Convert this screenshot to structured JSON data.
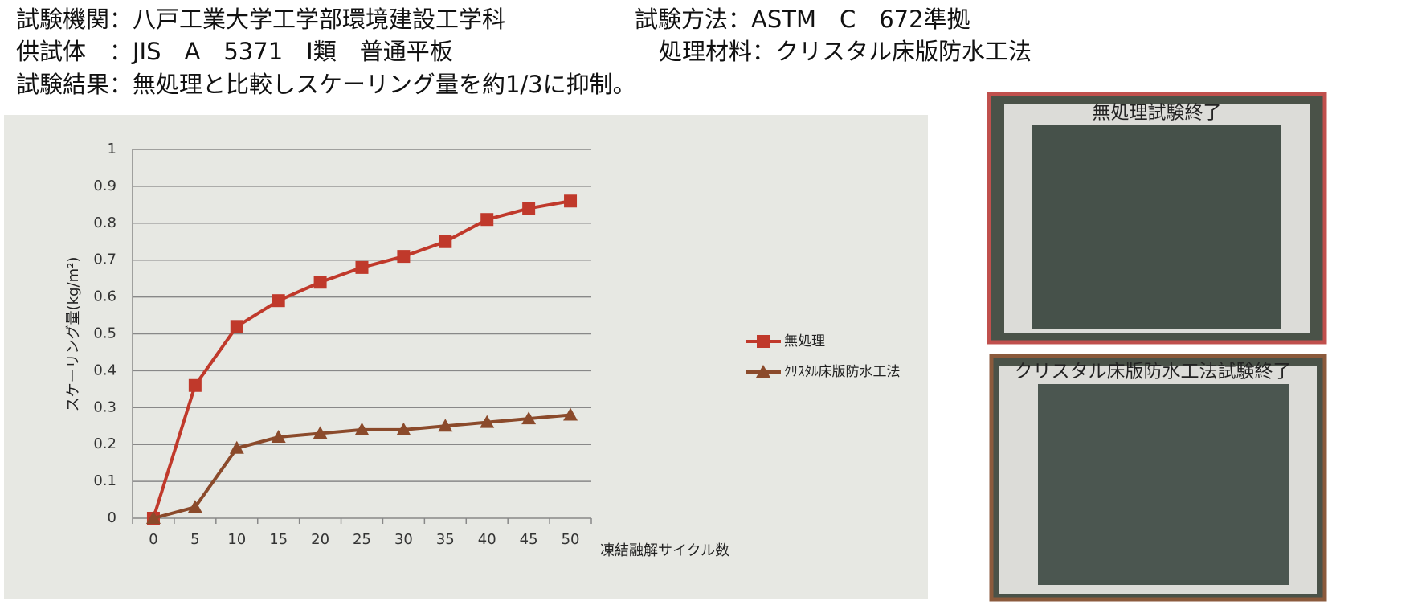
{
  "header": {
    "lines": [
      "試験機関：八戸工業大学工学部環境建設工学科",
      "試験方法：ASTM　C　672準拠",
      "供試体　：JIS　A　5371　Ⅰ類　普通平板",
      "処理材料：クリスタル床版防水工法",
      "試験結果：無処理と比較しスケーリング量を約1/3に抑制。"
    ]
  },
  "photos": [
    {
      "caption": "無処理試験終了"
    },
    {
      "caption": "クリスタル床版防水工法試験終了"
    }
  ],
  "chart_data": {
    "type": "line",
    "x_label": "凍結融解サイクル数",
    "y_label": "スケーリング量(kg/m²)",
    "categories": [
      "0",
      "5",
      "10",
      "15",
      "20",
      "25",
      "30",
      "35",
      "40",
      "45",
      "50"
    ],
    "series": [
      {
        "name": "無処理",
        "color": "#c0392b",
        "marker": "square",
        "values": [
          0,
          0.36,
          0.52,
          0.59,
          0.64,
          0.68,
          0.71,
          0.75,
          0.81,
          0.84,
          0.86
        ]
      },
      {
        "name": "ｸﾘｽﾀﾙ床版防水工法",
        "color": "#8b4a2b",
        "marker": "triangle",
        "values": [
          0,
          0.03,
          0.19,
          0.22,
          0.23,
          0.24,
          0.24,
          0.25,
          0.26,
          0.27,
          0.28
        ]
      }
    ],
    "ylim": [
      0,
      1
    ],
    "yticks": [
      0,
      0.1,
      0.2,
      0.3,
      0.4,
      0.5,
      0.6,
      0.7,
      0.8,
      0.9,
      1
    ],
    "grid": true,
    "legend": "right"
  }
}
